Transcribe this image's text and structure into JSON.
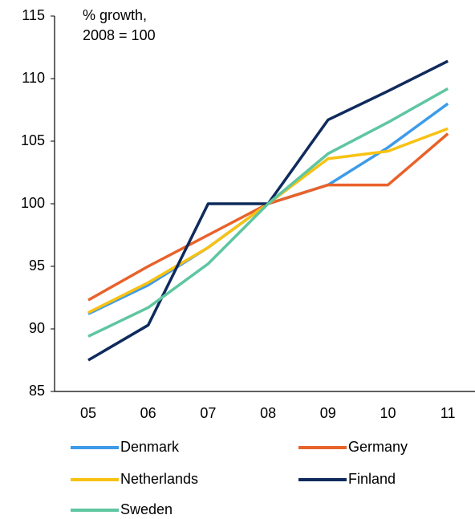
{
  "chart_data": {
    "type": "line",
    "annotation": [
      "% growth,",
      "2008 = 100"
    ],
    "categories": [
      "05",
      "06",
      "07",
      "08",
      "09",
      "10",
      "11"
    ],
    "series": [
      {
        "name": "Denmark",
        "color": "#3d9be9",
        "values": [
          91.2,
          93.5,
          96.5,
          100,
          101.5,
          104.5,
          108
        ]
      },
      {
        "name": "Germany",
        "color": "#e8622a",
        "values": [
          92.3,
          95,
          97.5,
          100,
          101.5,
          101.5,
          105.6
        ]
      },
      {
        "name": "Netherlands",
        "color": "#f8c212",
        "values": [
          91.3,
          93.7,
          96.5,
          100,
          103.6,
          104.2,
          106
        ]
      },
      {
        "name": "Finland",
        "color": "#0f2a5c",
        "values": [
          87.5,
          90.3,
          100,
          100,
          106.7,
          109,
          111.4
        ]
      },
      {
        "name": "Sweden",
        "color": "#5ec6a0",
        "values": [
          89.4,
          91.7,
          95.2,
          100,
          104,
          106.5,
          109.2
        ]
      }
    ],
    "ylim": [
      85,
      115
    ],
    "yticks": [
      85,
      90,
      95,
      100,
      105,
      110,
      115
    ],
    "grid": false
  }
}
